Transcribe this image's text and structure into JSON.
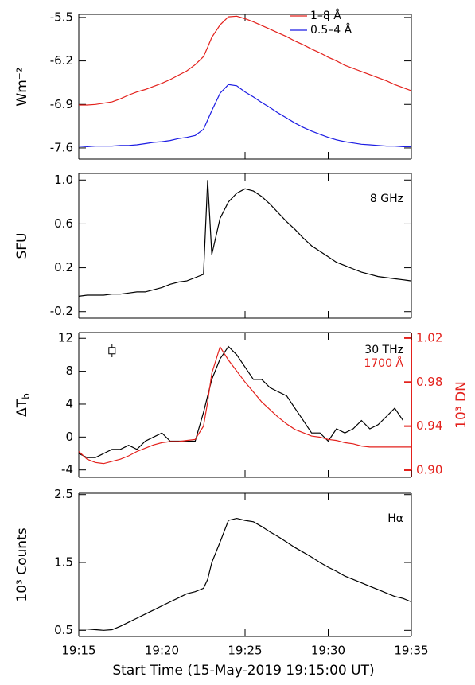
{
  "chart_data": [
    {
      "type": "line",
      "ylabel": "Wm⁻²",
      "legend": "upper center",
      "x": [
        0,
        0.5,
        1,
        1.5,
        2,
        2.5,
        3,
        3.5,
        4,
        4.5,
        5,
        5.5,
        6,
        6.5,
        7,
        7.5,
        7.75,
        8,
        8.5,
        9,
        9.5,
        10,
        10.5,
        11,
        11.5,
        12,
        12.5,
        13,
        13.5,
        14,
        14.5,
        15,
        15.5,
        16,
        16.5,
        17,
        17.5,
        18,
        18.5,
        19,
        19.5,
        20
      ],
      "xlim": [
        0,
        20
      ],
      "ylim": [
        -7.78,
        -5.45
      ],
      "yticks": [
        -7.6,
        -6.9,
        -6.2,
        -5.5
      ],
      "series": [
        {
          "name": "1–8 Å",
          "color": "#e3211c",
          "values": [
            -6.91,
            -6.91,
            -6.9,
            -6.88,
            -6.86,
            -6.81,
            -6.75,
            -6.7,
            -6.66,
            -6.61,
            -6.56,
            -6.5,
            -6.43,
            -6.36,
            -6.26,
            -6.13,
            -5.98,
            -5.82,
            -5.62,
            -5.49,
            -5.48,
            -5.52,
            -5.57,
            -5.63,
            -5.69,
            -5.75,
            -5.81,
            -5.88,
            -5.94,
            -6.01,
            -6.07,
            -6.14,
            -6.2,
            -6.27,
            -6.32,
            -6.37,
            -6.42,
            -6.47,
            -6.52,
            -6.58,
            -6.63,
            -6.68
          ]
        },
        {
          "name": "0.5–4 Å",
          "color": "#1c1ce3",
          "values": [
            -7.57,
            -7.58,
            -7.57,
            -7.57,
            -7.57,
            -7.56,
            -7.56,
            -7.55,
            -7.53,
            -7.51,
            -7.5,
            -7.48,
            -7.45,
            -7.43,
            -7.4,
            -7.3,
            -7.15,
            -7.0,
            -6.72,
            -6.58,
            -6.6,
            -6.7,
            -6.78,
            -6.87,
            -6.95,
            -7.04,
            -7.12,
            -7.2,
            -7.27,
            -7.33,
            -7.38,
            -7.43,
            -7.47,
            -7.5,
            -7.52,
            -7.54,
            -7.55,
            -7.56,
            -7.57,
            -7.57,
            -7.58,
            -7.58
          ]
        }
      ]
    },
    {
      "type": "line",
      "ylabel": "SFU",
      "legend": "upper right",
      "x": [
        0,
        0.5,
        1,
        1.5,
        2,
        2.5,
        3,
        3.5,
        4,
        4.5,
        5,
        5.5,
        6,
        6.5,
        7,
        7.5,
        7.75,
        8,
        8.5,
        9,
        9.5,
        10,
        10.5,
        11,
        11.5,
        12,
        12.5,
        13,
        13.5,
        14,
        14.5,
        15,
        15.5,
        16,
        16.5,
        17,
        17.5,
        18,
        18.5,
        19,
        19.5,
        20
      ],
      "xlim": [
        0,
        20
      ],
      "ylim": [
        -0.26,
        1.06
      ],
      "yticks": [
        -0.2,
        0.2,
        0.6,
        {
          "value": 1,
          "label": "1.0"
        }
      ],
      "series": [
        {
          "name": "8 GHz",
          "color": "#000000",
          "values": [
            -0.06,
            -0.05,
            -0.05,
            -0.05,
            -0.04,
            -0.04,
            -0.03,
            -0.02,
            -0.02,
            0.0,
            0.02,
            0.05,
            0.07,
            0.08,
            0.11,
            0.14,
            1.0,
            0.32,
            0.65,
            0.8,
            0.88,
            0.92,
            0.9,
            0.85,
            0.78,
            0.7,
            0.62,
            0.55,
            0.47,
            0.4,
            0.35,
            0.3,
            0.25,
            0.22,
            0.19,
            0.16,
            0.14,
            0.12,
            0.11,
            0.1,
            0.09,
            0.08
          ]
        }
      ]
    },
    {
      "type": "line",
      "ylabel": "ΔT",
      "ylabel_sub": "b",
      "y2label": "10³ DN",
      "legend": "upper right",
      "x": [
        0,
        0.5,
        1,
        1.5,
        2,
        2.5,
        3,
        3.5,
        4,
        4.5,
        5,
        5.5,
        6,
        6.5,
        7,
        7.5,
        7.75,
        8,
        8.5,
        9,
        9.5,
        10,
        10.5,
        11,
        11.5,
        12,
        12.5,
        13,
        13.5,
        14,
        14.5,
        15,
        15.5,
        16,
        16.5,
        17,
        17.5,
        18,
        18.5,
        19,
        19.5,
        20
      ],
      "xlim": [
        0,
        20
      ],
      "ylim": [
        -4.9,
        12.7
      ],
      "yticks": [
        -4,
        0,
        4,
        8,
        12
      ],
      "y2lim": [
        0.8935,
        1.025
      ],
      "y2ticks": [
        {
          "value": 0.9,
          "label": "0.90"
        },
        0.94,
        0.98,
        1.02
      ],
      "error_bar": {
        "x": 2,
        "y": 10.5,
        "error": 0.8
      },
      "series": [
        {
          "name": "30 THz",
          "color": "#000000",
          "values": [
            -2,
            -2.5,
            -2.5,
            -2,
            -1.5,
            -1.5,
            -1,
            -1.5,
            -0.5,
            0,
            0.5,
            -0.5,
            -0.5,
            -0.5,
            -0.5,
            3,
            5,
            7,
            9.5,
            11,
            10,
            8.5,
            7,
            7,
            6,
            5.5,
            5,
            3.5,
            2,
            0.5,
            0.5,
            -0.5,
            1,
            0.5,
            1,
            2,
            1,
            1.5,
            2.5,
            3.5,
            2,
            null
          ]
        },
        {
          "name": "1700 Å",
          "color": "#e3211c",
          "axis": "y2",
          "values": [
            0.917,
            0.91,
            0.907,
            0.906,
            0.908,
            0.91,
            0.913,
            0.917,
            0.92,
            0.923,
            0.925,
            0.926,
            0.926,
            0.927,
            0.928,
            0.94,
            0.962,
            0.988,
            1.012,
            1.0,
            0.99,
            0.98,
            0.971,
            0.962,
            0.955,
            0.948,
            0.942,
            0.937,
            0.934,
            0.931,
            0.93,
            0.928,
            0.927,
            0.925,
            0.924,
            0.922,
            0.921,
            0.921,
            0.921,
            0.921,
            0.921,
            0.921
          ]
        }
      ]
    },
    {
      "type": "line",
      "ylabel": "10³ Counts",
      "legend": "upper right",
      "xlabel": "Start Time (15-May-2019 19:15:00 UT)",
      "x": [
        0,
        0.5,
        1,
        1.5,
        2,
        2.5,
        3,
        3.5,
        4,
        4.5,
        5,
        5.5,
        6,
        6.5,
        7,
        7.5,
        7.75,
        8,
        8.5,
        9,
        9.5,
        10,
        10.5,
        11,
        11.5,
        12,
        12.5,
        13,
        13.5,
        14,
        14.5,
        15,
        15.5,
        16,
        16.5,
        17,
        17.5,
        18,
        18.5,
        19,
        19.5,
        20
      ],
      "xlim": [
        0,
        20
      ],
      "ylim": [
        0.41,
        2.52
      ],
      "yticks": [
        0.5,
        1.5,
        2.5
      ],
      "xticks": [
        {
          "value": 0,
          "label": "19:15"
        },
        {
          "value": 5,
          "label": "19:20"
        },
        {
          "value": 10,
          "label": "19:25"
        },
        {
          "value": 15,
          "label": "19:30"
        },
        {
          "value": 20,
          "label": "19:35"
        }
      ],
      "series": [
        {
          "name": "Hα",
          "color": "#000000",
          "values": [
            0.52,
            0.52,
            0.51,
            0.5,
            0.51,
            0.56,
            0.62,
            0.68,
            0.74,
            0.8,
            0.86,
            0.92,
            0.98,
            1.04,
            1.07,
            1.12,
            1.25,
            1.5,
            1.8,
            2.12,
            2.15,
            2.12,
            2.1,
            2.03,
            1.95,
            1.88,
            1.8,
            1.72,
            1.65,
            1.58,
            1.5,
            1.43,
            1.37,
            1.3,
            1.25,
            1.2,
            1.15,
            1.1,
            1.05,
            1.0,
            0.97,
            0.92
          ]
        }
      ]
    }
  ]
}
